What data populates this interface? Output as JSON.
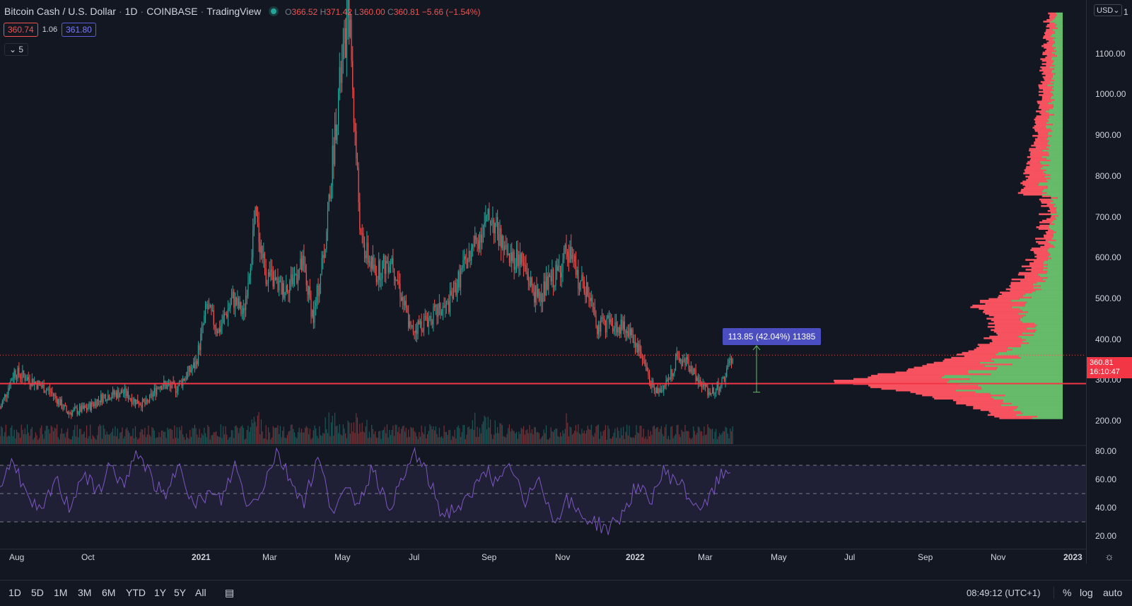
{
  "legend": {
    "symbol": "Bitcoin Cash / U.S. Dollar",
    "interval": "1D",
    "exchange": "COINBASE",
    "source": "TradingView",
    "open_label": "O",
    "open": "366.52",
    "high_label": "H",
    "high": "371.42",
    "low_label": "L",
    "low": "360.00",
    "close_label": "C",
    "close": "360.81",
    "change": "−5.66 (−1.54%)"
  },
  "trade": {
    "bid": "360.74",
    "spread": "1.06",
    "ask": "361.80"
  },
  "indicators": {
    "collapsed_count": "5"
  },
  "price_axis": {
    "currency": "USD",
    "top_tick": "1",
    "ticks": [
      "1100.00",
      "1000.00",
      "900.00",
      "800.00",
      "700.00",
      "600.00",
      "500.00",
      "400.00",
      "300.00",
      "200.00"
    ],
    "current_price": "360.81",
    "countdown": "16:10:47"
  },
  "rsi_axis": {
    "ticks": [
      "80.00",
      "60.00",
      "40.00",
      "20.00"
    ]
  },
  "time_axis": {
    "labels": [
      "Aug",
      "Oct",
      "2021",
      "Mar",
      "May",
      "Jul",
      "Sep",
      "Nov",
      "2022",
      "Mar",
      "May",
      "Jul",
      "Sep",
      "Nov",
      "2023"
    ]
  },
  "measure": {
    "label": "113.85 (42.04%) 11385"
  },
  "bottom_bar": {
    "timeframes": [
      "1D",
      "5D",
      "1M",
      "3M",
      "6M",
      "YTD",
      "1Y",
      "5Y",
      "All"
    ],
    "clock": "08:49:12 (UTC+1)",
    "percent": "%",
    "log": "log",
    "auto": "auto"
  },
  "colors": {
    "up": "#26a69a",
    "down": "#ef5350",
    "rsi": "#7e57c2",
    "vp_up": "#66bb6a",
    "vp_down": "#f7525f",
    "level": "#f23645"
  },
  "chart_data": {
    "type": "candlestick",
    "series": [
      {
        "name": "",
        "x": [
          "2020-07-20",
          "2020-08-01",
          "2020-08-15",
          "2020-09-01",
          "2020-09-15",
          "2020-10-01",
          "2020-10-15",
          "2020-11-01",
          "2020-11-10",
          "2020-11-20",
          "2020-12-01",
          "2020-12-15",
          "2021-01-01",
          "2021-01-10",
          "2021-01-20",
          "2021-02-01",
          "2021-02-10",
          "2021-02-20",
          "2021-03-01",
          "2021-03-15",
          "2021-04-01",
          "2021-04-10",
          "2021-04-20",
          "2021-05-01",
          "2021-05-10",
          "2021-05-15",
          "2021-05-20",
          "2021-06-01",
          "2021-06-15",
          "2021-07-01",
          "2021-07-20",
          "2021-08-01",
          "2021-08-15",
          "2021-09-01",
          "2021-09-07",
          "2021-09-20",
          "2021-10-01",
          "2021-10-15",
          "2021-11-01",
          "2021-11-10",
          "2021-11-20",
          "2021-12-01",
          "2021-12-05",
          "2021-12-15",
          "2022-01-01",
          "2022-01-10",
          "2022-01-22",
          "2022-02-01",
          "2022-02-10",
          "2022-02-20",
          "2022-03-01",
          "2022-03-10",
          "2022-03-20",
          "2022-03-29"
        ],
        "close": [
          230,
          320,
          300,
          270,
          220,
          230,
          260,
          270,
          250,
          240,
          290,
          280,
          340,
          480,
          420,
          500,
          460,
          700,
          560,
          520,
          580,
          450,
          640,
          1000,
          1200,
          900,
          640,
          560,
          600,
          420,
          460,
          480,
          580,
          680,
          700,
          600,
          600,
          500,
          560,
          620,
          540,
          500,
          430,
          440,
          420,
          370,
          270,
          290,
          350,
          340,
          290,
          270,
          290,
          360
        ]
      }
    ],
    "volume_profile": {
      "point_of_control": 291
    },
    "horizontal_level": 291,
    "measure": {
      "from": 270,
      "to": 383.85,
      "change": 113.85,
      "percent": 42.04,
      "ticks": 11385
    },
    "rsi": {
      "upper": 70,
      "mid": 50,
      "lower": 30,
      "values": [
        55,
        75,
        45,
        35,
        60,
        40,
        65,
        50,
        70,
        55,
        80,
        60,
        45,
        75,
        40,
        50,
        45,
        70,
        40,
        55,
        80,
        60,
        45,
        75,
        40,
        50,
        45,
        70,
        40,
        55,
        80,
        60,
        35,
        40,
        45,
        70,
        55,
        70,
        40,
        65,
        30,
        45,
        35,
        30,
        25,
        35,
        55,
        45,
        65,
        60,
        45,
        40,
        60,
        70
      ]
    },
    "ylim": [
      200,
      1200
    ],
    "xlim": [
      "2020-07-20",
      "2023-01-01"
    ],
    "grid": false
  }
}
